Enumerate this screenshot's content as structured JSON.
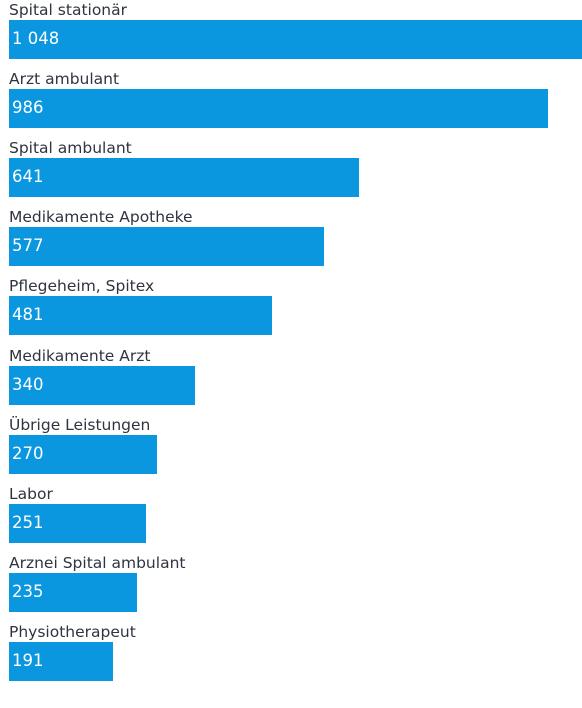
{
  "colors": {
    "bar": "#0a97df",
    "label": "#2f3440",
    "value_text": "#ffffff",
    "background": "#ffffff"
  },
  "chart_data": {
    "type": "bar",
    "orientation": "horizontal",
    "categories": [
      "Spital stationär",
      "Arzt ambulant",
      "Spital ambulant",
      "Medikamente Apotheke",
      "Pflegeheim, Spitex",
      "Medikamente Arzt",
      "Übrige Leistungen",
      "Labor",
      "Arznei Spital ambulant",
      "Physiotherapeut"
    ],
    "values": [
      1048,
      986,
      641,
      577,
      481,
      340,
      270,
      251,
      235,
      191
    ],
    "value_labels": [
      "1 048",
      "986",
      "641",
      "577",
      "481",
      "340",
      "270",
      "251",
      "235",
      "191"
    ],
    "xlim": [
      0,
      1048
    ],
    "grid": false,
    "legend": "none"
  }
}
